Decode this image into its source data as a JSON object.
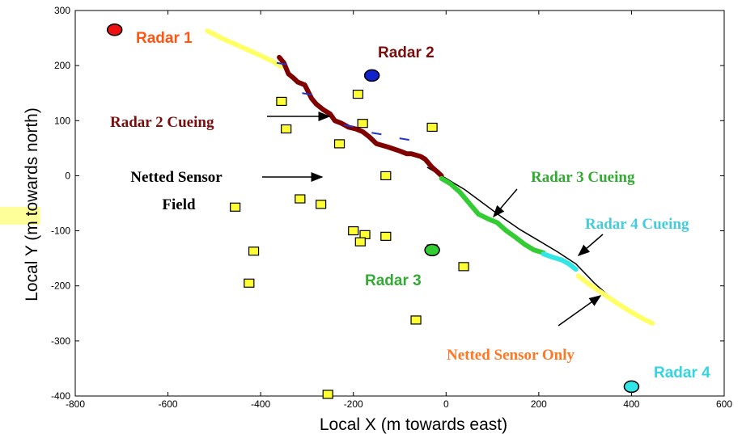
{
  "chart_data": {
    "type": "scatter",
    "title": "",
    "xlabel": "Local X (m towards east)",
    "ylabel": "Local Y (m towards north)",
    "xlim": [
      -800,
      600
    ],
    "ylim": [
      -400,
      300
    ],
    "x_ticks": [
      "-800",
      "-600",
      "-400",
      "-200",
      "0",
      "200",
      "400",
      "600"
    ],
    "y_ticks": [
      "300",
      "200",
      "100",
      "0",
      "-100",
      "-200",
      "-300",
      "-400"
    ],
    "grid": false,
    "colors": {
      "sensor": "#ffff33",
      "path_yellow": "#ffff66",
      "path_red": "#800000",
      "path_green": "#33cc33",
      "path_cyan": "#33e6e6",
      "path_blue": "#2233cc",
      "radar1": "#ee1111",
      "radar2": "#1122cc",
      "radar3": "#33cc33",
      "radar4": "#33e6e6"
    },
    "radars": [
      {
        "name": "Radar 1",
        "x": -715,
        "y": 265,
        "color": "#ee1111"
      },
      {
        "name": "Radar 2",
        "x": -160,
        "y": 182,
        "color": "#1122cc"
      },
      {
        "name": "Radar 3",
        "x": -30,
        "y": -135,
        "color": "#33cc33"
      },
      {
        "name": "Radar 4",
        "x": 400,
        "y": -383,
        "color": "#33e6e6"
      }
    ],
    "sensors": [
      {
        "x": -355,
        "y": 135
      },
      {
        "x": -345,
        "y": 85
      },
      {
        "x": -190,
        "y": 148
      },
      {
        "x": -180,
        "y": 95
      },
      {
        "x": -30,
        "y": 88
      },
      {
        "x": -230,
        "y": 58
      },
      {
        "x": -130,
        "y": 0
      },
      {
        "x": -315,
        "y": -42
      },
      {
        "x": -270,
        "y": -52
      },
      {
        "x": -455,
        "y": -57
      },
      {
        "x": -200,
        "y": -100
      },
      {
        "x": -175,
        "y": -107
      },
      {
        "x": -130,
        "y": -110
      },
      {
        "x": -185,
        "y": -120
      },
      {
        "x": -30,
        "y": -133
      },
      {
        "x": -415,
        "y": -137
      },
      {
        "x": 38,
        "y": -165
      },
      {
        "x": -425,
        "y": -195
      },
      {
        "x": -65,
        "y": -262
      },
      {
        "x": -255,
        "y": -397
      }
    ],
    "series": [
      {
        "name": "Netted Sensor Only",
        "color": "#ffff66",
        "x": [
          -515,
          -480,
          -445,
          -410,
          -375,
          -355
        ],
        "y": [
          263,
          248,
          235,
          222,
          208,
          198
        ]
      },
      {
        "name": "Radar 2 Cueing",
        "color": "#800000",
        "x": [
          -360,
          -350,
          -340,
          -330,
          -320,
          -305,
          -290,
          -280,
          -265,
          -250,
          -240,
          -225,
          -210,
          -195,
          -180,
          -165,
          -150,
          -125,
          -100,
          -85,
          -75,
          -55,
          -45,
          -30,
          -20,
          -10
        ],
        "y": [
          215,
          205,
          185,
          178,
          170,
          165,
          140,
          130,
          120,
          112,
          100,
          95,
          88,
          85,
          80,
          70,
          58,
          52,
          45,
          40,
          40,
          35,
          30,
          15,
          8,
          0
        ]
      },
      {
        "name": "Radar 3 Cueing",
        "color": "#33cc33",
        "x": [
          -10,
          10,
          30,
          50,
          70,
          90,
          110,
          130,
          150,
          170,
          190,
          210
        ],
        "y": [
          -5,
          -15,
          -30,
          -50,
          -70,
          -78,
          -85,
          -100,
          -112,
          -125,
          -135,
          -140
        ]
      },
      {
        "name": "Radar 4 Cueing",
        "color": "#33e6e6",
        "x": [
          210,
          230,
          250,
          265,
          280
        ],
        "y": [
          -142,
          -148,
          -153,
          -160,
          -170
        ]
      },
      {
        "name": "Netted Sensor Only",
        "color": "#ffff66",
        "x": [
          285,
          310,
          340,
          370,
          400,
          430,
          445
        ],
        "y": [
          -182,
          -198,
          -215,
          -232,
          -248,
          -262,
          -268
        ]
      },
      {
        "name": "",
        "color": "#000000",
        "x": [
          -40,
          0,
          40,
          80,
          120,
          160,
          200,
          240,
          280,
          320,
          360,
          400,
          445
        ],
        "y": [
          15,
          -5,
          -25,
          -50,
          -75,
          -98,
          -118,
          -138,
          -160,
          -195,
          -225,
          -245,
          -270
        ]
      }
    ],
    "annotations": {
      "radar1": "Radar 1",
      "radar2": "Radar 2",
      "radar3": "Radar 3",
      "radar4": "Radar 4",
      "radar2_cueing": "Radar 2 Cueing",
      "radar3_cueing": "Radar 3 Cueing",
      "radar4_cueing": "Radar 4 Cueing",
      "netted_field_line1": "Netted Sensor",
      "netted_field_line2": "Field",
      "netted_only": "Netted Sensor Only"
    }
  }
}
